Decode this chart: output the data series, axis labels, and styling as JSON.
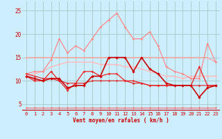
{
  "x": [
    0,
    1,
    2,
    3,
    4,
    5,
    6,
    7,
    8,
    9,
    10,
    11,
    12,
    13,
    14,
    15,
    16,
    17,
    18,
    19,
    20,
    21,
    22,
    23
  ],
  "background_color": "#cceeff",
  "grid_color": "#aacccc",
  "xlabel": "Vent moyen/en rafales ( km/h )",
  "ylabel_ticks": [
    5,
    10,
    15,
    20,
    25
  ],
  "xlim": [
    -0.5,
    23.5
  ],
  "ylim": [
    3.5,
    27
  ],
  "lines": [
    {
      "y": [
        15.0,
        15.0,
        15.0,
        15.0,
        15.0,
        15.0,
        15.0,
        15.0,
        15.0,
        15.0,
        15.0,
        15.0,
        15.0,
        15.0,
        15.0,
        15.0,
        15.0,
        15.0,
        15.0,
        15.0,
        15.0,
        15.0,
        15.0,
        14.0
      ],
      "color": "#ffaaaa",
      "lw": 1.0,
      "marker": "D",
      "ms": 1.8,
      "zorder": 2
    },
    {
      "y": [
        11.0,
        11.5,
        12.0,
        13.0,
        13.5,
        14.0,
        14.0,
        14.0,
        14.0,
        13.5,
        13.5,
        13.5,
        13.0,
        13.0,
        12.5,
        12.0,
        11.5,
        11.0,
        11.0,
        10.5,
        11.0,
        11.0,
        11.0,
        11.0
      ],
      "color": "#ffbbbb",
      "lw": 1.0,
      "marker": "D",
      "ms": 1.8,
      "zorder": 2
    },
    {
      "y": [
        11.5,
        12.0,
        12.0,
        14.5,
        19.0,
        16.0,
        17.5,
        16.5,
        19.0,
        21.5,
        23.0,
        24.5,
        21.5,
        19.0,
        19.0,
        20.5,
        17.5,
        13.0,
        12.0,
        11.5,
        10.5,
        10.5,
        18.0,
        14.0
      ],
      "color": "#ff8888",
      "lw": 0.9,
      "marker": "D",
      "ms": 1.8,
      "zorder": 3
    },
    {
      "y": [
        11.0,
        10.5,
        10.0,
        10.5,
        10.5,
        8.5,
        9.0,
        9.0,
        11.0,
        11.0,
        15.0,
        15.0,
        15.0,
        12.0,
        15.0,
        12.5,
        11.5,
        9.5,
        9.0,
        9.0,
        9.0,
        6.5,
        8.5,
        9.0
      ],
      "color": "#cc0000",
      "lw": 1.2,
      "marker": "D",
      "ms": 2.2,
      "zorder": 5
    },
    {
      "y": [
        11.5,
        11.0,
        10.5,
        10.5,
        10.0,
        9.5,
        9.5,
        9.5,
        10.0,
        10.0,
        10.0,
        10.0,
        10.0,
        9.5,
        9.5,
        9.0,
        9.0,
        9.0,
        9.0,
        9.0,
        9.0,
        9.0,
        9.0,
        9.0
      ],
      "color": "#dd3333",
      "lw": 0.9,
      "marker": "D",
      "ms": 1.8,
      "zorder": 3
    },
    {
      "y": [
        11.0,
        10.0,
        10.0,
        12.0,
        10.0,
        8.0,
        9.5,
        12.0,
        12.0,
        11.0,
        11.5,
        11.5,
        10.0,
        10.0,
        9.5,
        9.0,
        9.0,
        9.0,
        9.0,
        9.0,
        9.0,
        13.0,
        9.0,
        9.0
      ],
      "color": "#ee2222",
      "lw": 0.9,
      "marker": "D",
      "ms": 1.8,
      "zorder": 4
    },
    {
      "y": [
        4.2,
        4.2,
        4.2,
        4.2,
        4.2,
        4.2,
        4.2,
        4.2,
        4.2,
        4.2,
        4.2,
        4.2,
        4.2,
        4.2,
        4.2,
        4.2,
        4.2,
        4.2,
        4.2,
        4.2,
        4.2,
        4.2,
        4.2,
        4.2
      ],
      "color": "#ff6666",
      "lw": 0.8,
      "marker": "D",
      "ms": 1.5,
      "zorder": 1
    }
  ]
}
